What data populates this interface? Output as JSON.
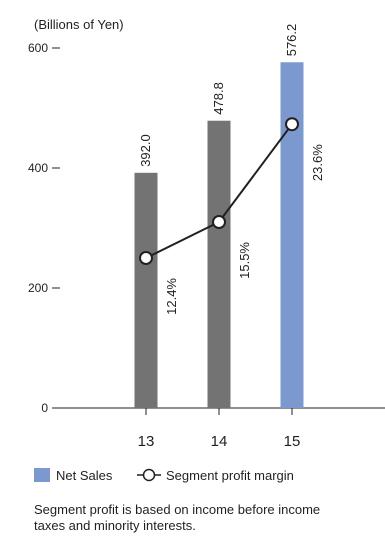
{
  "chart_data": {
    "type": "bar+line",
    "unit_label": "(Billions of Yen)",
    "categories": [
      "13",
      "14",
      "15"
    ],
    "ylim": [
      0,
      600
    ],
    "yticks": [
      0,
      200,
      400,
      600
    ],
    "bars": {
      "name": "Net Sales",
      "values": [
        392.0,
        478.8,
        576.2
      ],
      "labels": [
        "392.0",
        "478.8",
        "576.2"
      ],
      "colors": [
        "#737374",
        "#737374",
        "#7b98cf"
      ]
    },
    "line": {
      "name": "Segment profit margin",
      "values_pct": [
        12.4,
        15.5,
        23.6
      ],
      "labels": [
        "12.4%",
        "15.5%",
        "23.6%"
      ],
      "plotted_at_sales_scale": [
        250,
        310,
        473
      ]
    },
    "legend": {
      "position": "bottom-left",
      "bar_label": "Net Sales",
      "line_label": "Segment profit margin",
      "bar_color": "#7b98cf"
    },
    "grid": false
  },
  "footnote": {
    "line1": "Segment profit is based on income before income",
    "line2": "taxes and minority interests."
  }
}
